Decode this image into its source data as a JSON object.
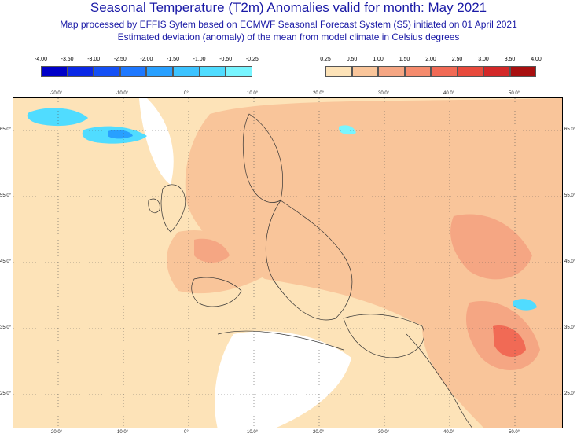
{
  "header": {
    "title": "Seasonal Temperature (T2m) Anomalies valid for month: May 2021",
    "line1": "Map processed by EFFIS Sytem based on ECMWF Seasonal Forecast System (S5) initiated on 01 April 2021",
    "line2": "Estimated deviation (anomaly) of the mean from model climate in Celsius degrees"
  },
  "legend_negative": {
    "ticks": [
      "-4.00",
      "-3.50",
      "-3.00",
      "-2.50",
      "-2.00",
      "-1.50",
      "-1.00",
      "-0.50",
      "-0.25"
    ],
    "colors": [
      "#0000c8",
      "#0a28e6",
      "#1450f5",
      "#1e78ff",
      "#28a0ff",
      "#3cc3ff",
      "#50dcff",
      "#78f5ff"
    ]
  },
  "legend_positive": {
    "ticks": [
      "0.25",
      "0.50",
      "1.00",
      "1.50",
      "2.00",
      "2.50",
      "3.00",
      "3.50",
      "4.00"
    ],
    "colors": [
      "#fde3b8",
      "#f9c59a",
      "#f5a683",
      "#f58b6d",
      "#f16a55",
      "#e84a3c",
      "#d32828",
      "#a80f0f"
    ]
  },
  "map": {
    "lon_labels_top": [
      "-20.0°",
      "-10.0°",
      "0°",
      "10.0°",
      "20.0°",
      "30.0°",
      "40.0°",
      "50.0°"
    ],
    "lon_labels_bottom": [
      "-20.0°",
      "-10.0°",
      "0°",
      "10.0°",
      "20.0°",
      "30.0°",
      "40.0°",
      "50.0°"
    ],
    "lat_labels_left": [
      "65.0°",
      "55.0°",
      "45.0°",
      "35.0°",
      "25.0°"
    ],
    "lat_labels_right": [
      "65.0°",
      "55.0°",
      "45.0°",
      "35.0°",
      "25.0°"
    ]
  }
}
